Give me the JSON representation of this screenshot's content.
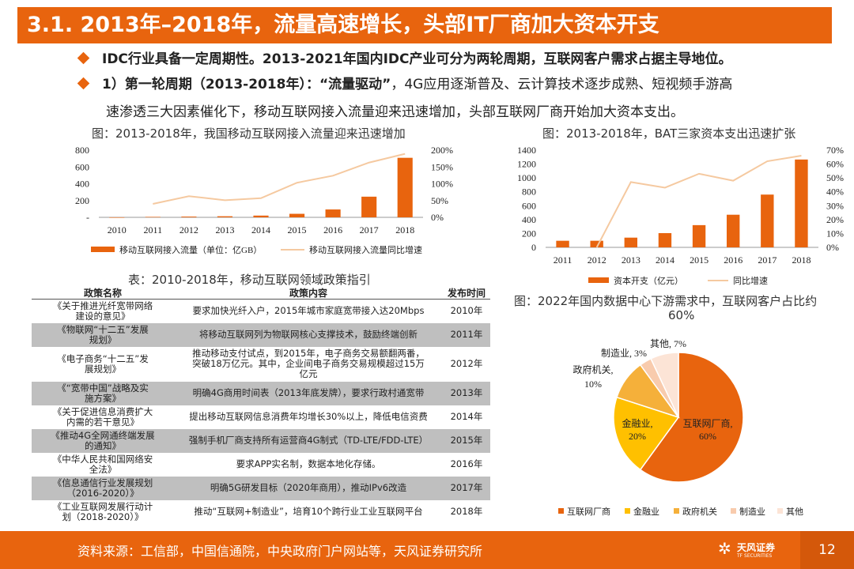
{
  "title": "3.1. 2013年–2018年，流量高速增长，头部IT厂商加大资本开支",
  "bullets": {
    "b1": "IDC行业具备一定周期性。2013-2021年国内IDC产业可分为两轮周期，互联网客户需求占据主导地位。",
    "b2_strong": "1）第一轮周期（2013-2018年）：“流量驱动”",
    "b2_rest": "，4G应用逐渐普及、云计算技术逐步成熟、短视频手游高",
    "b3": "速渗透三大因素催化下，移动互联网接入流量迎来迅速增加，头部互联网厂商开始加大资本支出。"
  },
  "captions": {
    "chart1": "图：2013-2018年，我国移动互联网接入流量迎来迅速增加",
    "chart2": "图：2013-2018年，BAT三家资本支出迅速扩张",
    "table": "表：2010-2018年，移动互联网领域政策指引",
    "pie_line1": "图：2022年国内数据中心下游需求中，互联网客户占比约",
    "pie_line2": "60%"
  },
  "table": {
    "headers": [
      "政策名称",
      "政策内容",
      "发布时间"
    ],
    "rows": [
      {
        "name": [
          "《关于推进光纤宽带网络",
          "建设的意见》"
        ],
        "content": [
          "要求加快光纤入户，2015年城市家庭宽带接入达20Mbps"
        ],
        "year": "2010年"
      },
      {
        "name": [
          "《物联网“十二五”发展",
          "规划》"
        ],
        "content": [
          "将移动互联网列为物联网核心支撑技术，鼓励终端创新"
        ],
        "year": "2011年"
      },
      {
        "name": [
          "《电子商务“十二五”发",
          "展规划》"
        ],
        "content": [
          "推动移动支付试点，到2015年，电子商务交易额翻两番，",
          "突破18万亿元。其中，企业间电子商务交易规模超过15万",
          "亿元"
        ],
        "year": "2012年"
      },
      {
        "name": [
          "《“宽带中国”战略及实",
          "施方案》"
        ],
        "content": [
          "明确4G商用时间表（2013年底发牌），要求行政村通宽带"
        ],
        "year": "2013年"
      },
      {
        "name": [
          "《关于促进信息消费扩大",
          "内需的若干意见》"
        ],
        "content": [
          "提出移动互联网信息消费年均增长30%以上，降低电信资费"
        ],
        "year": "2014年"
      },
      {
        "name": [
          "《推动4G全网通终端发展",
          "的通知》"
        ],
        "content": [
          "强制手机厂商支持所有运营商4G制式（TD-LTE/FDD-LTE）"
        ],
        "year": "2015年"
      },
      {
        "name": [
          "《中华人民共和国网络安",
          "全法》"
        ],
        "content": [
          "要求APP实名制，数据本地化存储。"
        ],
        "year": "2016年"
      },
      {
        "name": [
          "《信息通信行业发展规划",
          "（2016-2020）》"
        ],
        "content": [
          "明确5G研发目标（2020年商用），推动IPv6改造"
        ],
        "year": "2017年"
      },
      {
        "name": [
          "《工业互联网发展行动计",
          "划（2018-2020）》"
        ],
        "content": [
          "推动“互联网+制造业”，培育10个跨行业工业互联网平台"
        ],
        "year": "2018年"
      }
    ]
  },
  "footer": {
    "source": "资料来源：工信部，中国信通院，中央政府门户网站等，天风证券研究所",
    "logo_cn": "天风证券",
    "logo_en": "TF SECURITIES",
    "page": "12"
  },
  "colors": {
    "accent": "#E8640E",
    "line": "#F5C9A0",
    "gold": "#FFC000",
    "peach": "#F8CBAD",
    "pale": "#FCE4D6"
  },
  "chart_data": [
    {
      "type": "bar",
      "categories": [
        "2010",
        "2011",
        "2012",
        "2013",
        "2014",
        "2015",
        "2016",
        "2017",
        "2018"
      ],
      "series": [
        {
          "name": "移动互联网接入流量（单位：亿GB）",
          "type": "bar",
          "values": [
            0.5,
            5.4,
            8.8,
            12.7,
            20.6,
            41.9,
            93.6,
            246,
            709
          ]
        },
        {
          "name": "移动互联网接入流量同比增速",
          "type": "line",
          "axis": "right",
          "values": [
            null,
            40,
            63,
            51,
            57,
            103,
            124,
            163,
            189
          ]
        }
      ],
      "ylim_left": [
        0,
        800
      ],
      "yticks_left": [
        "-",
        "200",
        "400",
        "600",
        "800"
      ],
      "ylim_right": [
        0,
        200
      ],
      "yticks_right": [
        "0%",
        "50%",
        "100%",
        "150%",
        "200%"
      ]
    },
    {
      "type": "bar",
      "categories": [
        "2011",
        "2012",
        "2013",
        "2014",
        "2015",
        "2016",
        "2017",
        "2018"
      ],
      "series": [
        {
          "name": "资本开支（亿元）",
          "type": "bar",
          "values": [
            95,
            95,
            140,
            205,
            320,
            470,
            760,
            1265
          ]
        },
        {
          "name": "同比增速",
          "type": "line",
          "axis": "right",
          "values": [
            null,
            0,
            47,
            43,
            53,
            48,
            62,
            66
          ]
        }
      ],
      "ylim_left": [
        0,
        1400
      ],
      "yticks_left": [
        "0",
        "200",
        "400",
        "600",
        "800",
        "1000",
        "1200",
        "1400"
      ],
      "ylim_right": [
        0,
        70
      ],
      "yticks_right": [
        "0%",
        "10%",
        "20%",
        "30%",
        "40%",
        "50%",
        "60%",
        "70%"
      ]
    },
    {
      "type": "pie",
      "labels": [
        "互联网厂商",
        "金融业",
        "政府机关",
        "制造业",
        "其他"
      ],
      "values": [
        60,
        20,
        10,
        3,
        7
      ],
      "slice_labels": [
        [
          "互联网厂商,",
          "60%"
        ],
        [
          "金融业,",
          "20%"
        ],
        [
          "政府机关,",
          "10%"
        ],
        [
          "制造业, 3%"
        ],
        [
          "其他, 7%"
        ]
      ],
      "colors": [
        "#E8640E",
        "#FFC000",
        "#F5B03A",
        "#F8CBAD",
        "#FCE4D6"
      ]
    }
  ]
}
